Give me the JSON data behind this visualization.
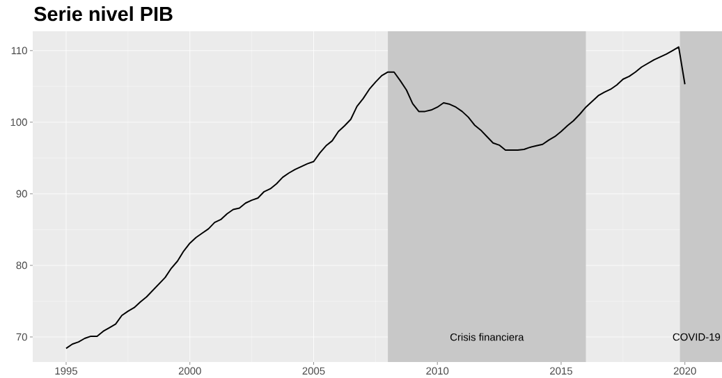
{
  "chart_data": {
    "type": "line",
    "title": "Serie nivel PIB",
    "x": [
      1995.0,
      1995.25,
      1995.5,
      1995.75,
      1996.0,
      1996.25,
      1996.5,
      1996.75,
      1997.0,
      1997.25,
      1997.5,
      1997.75,
      1998.0,
      1998.25,
      1998.5,
      1998.75,
      1999.0,
      1999.25,
      1999.5,
      1999.75,
      2000.0,
      2000.25,
      2000.5,
      2000.75,
      2001.0,
      2001.25,
      2001.5,
      2001.75,
      2002.0,
      2002.25,
      2002.5,
      2002.75,
      2003.0,
      2003.25,
      2003.5,
      2003.75,
      2004.0,
      2004.25,
      2004.5,
      2004.75,
      2005.0,
      2005.25,
      2005.5,
      2005.75,
      2006.0,
      2006.25,
      2006.5,
      2006.75,
      2007.0,
      2007.25,
      2007.5,
      2007.75,
      2008.0,
      2008.25,
      2008.5,
      2008.75,
      2009.0,
      2009.25,
      2009.5,
      2009.75,
      2010.0,
      2010.25,
      2010.5,
      2010.75,
      2011.0,
      2011.25,
      2011.5,
      2011.75,
      2012.0,
      2012.25,
      2012.5,
      2012.75,
      2013.0,
      2013.25,
      2013.5,
      2013.75,
      2014.0,
      2014.25,
      2014.5,
      2014.75,
      2015.0,
      2015.25,
      2015.5,
      2015.75,
      2016.0,
      2016.25,
      2016.5,
      2016.75,
      2017.0,
      2017.25,
      2017.5,
      2017.75,
      2018.0,
      2018.25,
      2018.5,
      2018.75,
      2019.0,
      2019.25,
      2019.5,
      2019.75,
      2020.0
    ],
    "series": [
      {
        "color": "#000000",
        "values": [
          68.4,
          69.0,
          69.3,
          69.8,
          70.1,
          70.1,
          70.8,
          71.3,
          71.8,
          73.0,
          73.6,
          74.1,
          74.9,
          75.6,
          76.5,
          77.4,
          78.3,
          79.6,
          80.6,
          82.0,
          83.1,
          83.9,
          84.5,
          85.1,
          86.0,
          86.4,
          87.2,
          87.8,
          88.0,
          88.7,
          89.1,
          89.4,
          90.3,
          90.7,
          91.4,
          92.3,
          92.9,
          93.4,
          93.8,
          94.2,
          94.5,
          95.7,
          96.7,
          97.4,
          98.7,
          99.5,
          100.4,
          102.2,
          103.3,
          104.6,
          105.6,
          106.5,
          107.0,
          107.0,
          105.8,
          104.5,
          102.6,
          101.5,
          101.5,
          101.7,
          102.1,
          102.7,
          102.5,
          102.1,
          101.5,
          100.7,
          99.6,
          98.9,
          98.0,
          97.1,
          96.8,
          96.1,
          96.1,
          96.1,
          96.2,
          96.5,
          96.7,
          96.9,
          97.5,
          98.0,
          98.7,
          99.5,
          100.2,
          101.1,
          102.1,
          102.9,
          103.7,
          104.2,
          104.6,
          105.2,
          106.0,
          106.4,
          107.0,
          107.7,
          108.2,
          108.7,
          109.1,
          109.5,
          110.0,
          110.5,
          105.3
        ]
      }
    ],
    "xlim": [
      1993.65,
      2021.5
    ],
    "ylim": [
      66.5,
      112.7
    ],
    "xticks": [
      1995,
      2000,
      2005,
      2010,
      2015,
      2020
    ],
    "yticks": [
      70,
      80,
      90,
      100,
      110
    ],
    "grid": true,
    "bands": [
      {
        "axis": "x",
        "from": 2008.0,
        "to": 2016.0,
        "label": "Crisis financiera",
        "color": "#c8c8c8"
      },
      {
        "axis": "x",
        "from": 2019.8,
        "to": 2021.5,
        "label": "COVID-19",
        "color": "#c8c8c8"
      }
    ]
  }
}
